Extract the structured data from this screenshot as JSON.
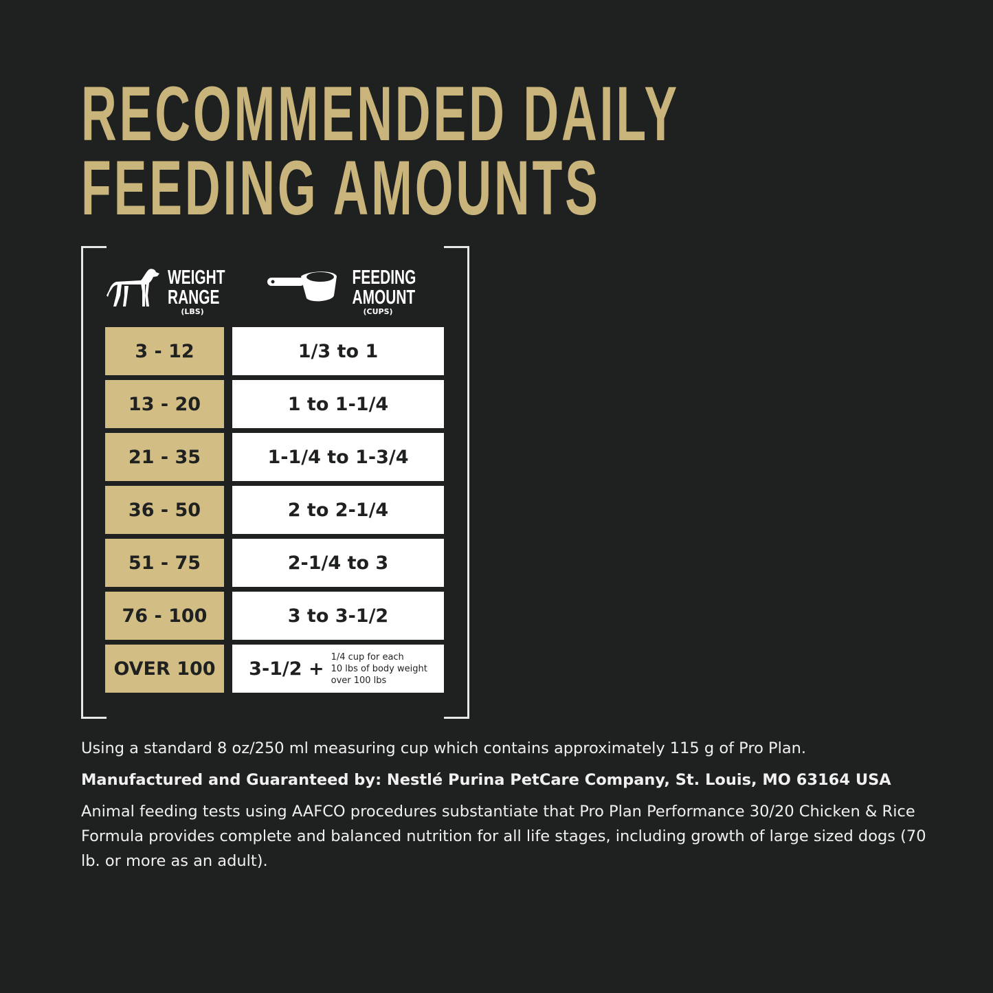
{
  "title": {
    "line1": "RECOMMENDED DAILY",
    "line2": "FEEDING AMOUNTS"
  },
  "colors": {
    "background": "#1f2120",
    "gold": "#c9b47c",
    "cell_gold": "#d2bd85"
  },
  "table": {
    "weight_header": {
      "line1": "WEIGHT",
      "line2": "RANGE",
      "unit": "(LBS)",
      "icon": "dog-icon"
    },
    "feeding_header": {
      "line1": "FEEDING",
      "line2": "AMOUNT",
      "unit": "(CUPS)",
      "icon": "measuring-cup-icon"
    },
    "rows": [
      {
        "weight": "3 - 12",
        "amount": "1/3 to 1"
      },
      {
        "weight": "13 - 20",
        "amount": "1 to 1-1/4"
      },
      {
        "weight": "21 - 35",
        "amount": "1-1/4 to 1-3/4"
      },
      {
        "weight": "36 - 50",
        "amount": "2 to 2-1/4"
      },
      {
        "weight": "51 - 75",
        "amount": "2-1/4 to 3"
      },
      {
        "weight": "76 - 100",
        "amount": "3 to 3-1/2"
      },
      {
        "weight": "OVER 100",
        "amount": "3-1/2 +",
        "note_lines": [
          "1/4 cup for each",
          "10 lbs of body weight",
          "over 100 lbs"
        ]
      }
    ]
  },
  "footer": {
    "cup_note": "Using a standard 8 oz/250 ml measuring cup which contains approximately 115 g of Pro Plan.",
    "manufacturer": "Manufactured and Guaranteed by: Nestlé Purina PetCare Company, St. Louis, MO 63164 USA",
    "aafco": "Animal feeding tests using AAFCO procedures substantiate that Pro Plan Performance 30/20 Chicken & Rice Formula provides complete and balanced nutrition for all life stages, including growth of large sized dogs (70 lb. or more as an adult)."
  }
}
